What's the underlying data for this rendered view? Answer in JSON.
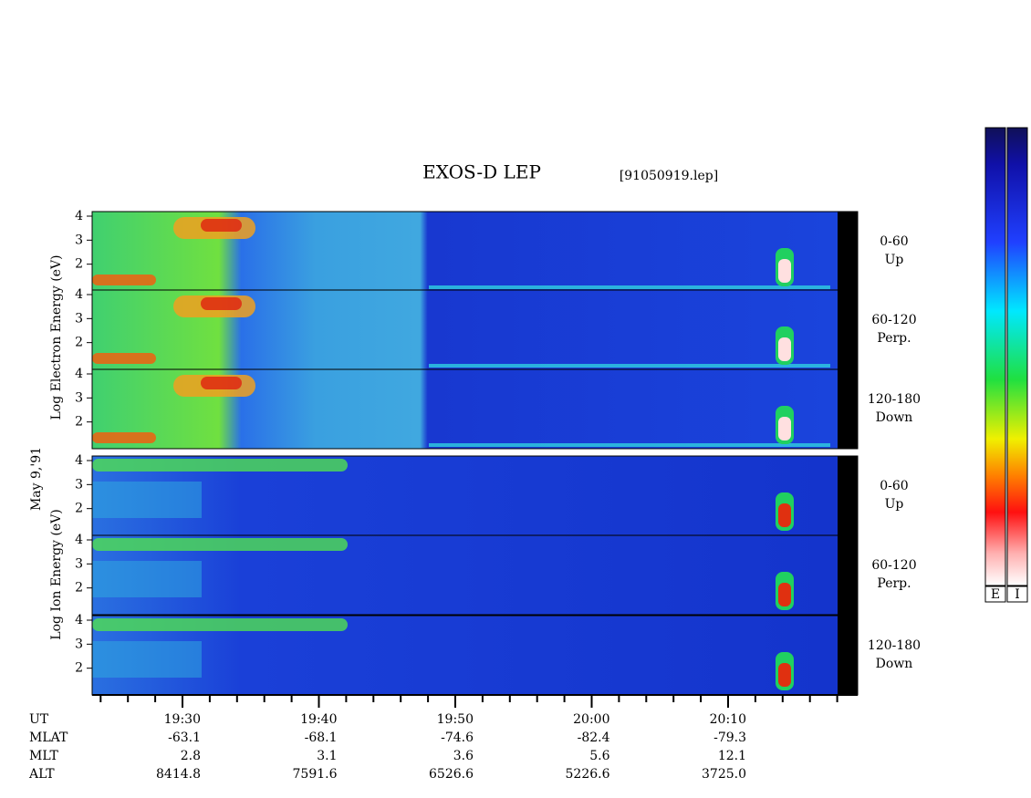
{
  "title": "EXOS-D LEP",
  "file": "[91050919.lep]",
  "electron_label": "Log Electron Energy (eV)",
  "date": "May 9,'91",
  "ion_label": "Log Ion Energy (eV)",
  "panels": [
    {
      "range": "0-60",
      "direction": "Up"
    },
    {
      "range": "60-120",
      "direction": "Perp."
    },
    {
      "range": "120-180",
      "direction": "Down"
    },
    {
      "range": "0-60",
      "direction": "Up"
    },
    {
      "range": "60-120",
      "direction": "Perp."
    },
    {
      "range": "120-180",
      "direction": "Down"
    }
  ],
  "energy_ticks": [
    4,
    3,
    2
  ],
  "colorbar": [
    "E",
    "I"
  ],
  "ephemeris": {
    "rows": [
      {
        "name": "UT",
        "values": [
          "19:30",
          "19:40",
          "19:50",
          "20:00",
          "20:10"
        ]
      },
      {
        "name": "MLAT",
        "values": [
          "-63.1",
          "-68.1",
          "-74.6",
          "-82.4",
          "-79.3"
        ]
      },
      {
        "name": "MLT",
        "values": [
          "2.8",
          "3.1",
          "3.6",
          "5.6",
          "12.1"
        ]
      },
      {
        "name": "ALT",
        "values": [
          "8414.8",
          "7591.6",
          "6526.6",
          "5226.6",
          "3725.0"
        ]
      }
    ]
  }
}
